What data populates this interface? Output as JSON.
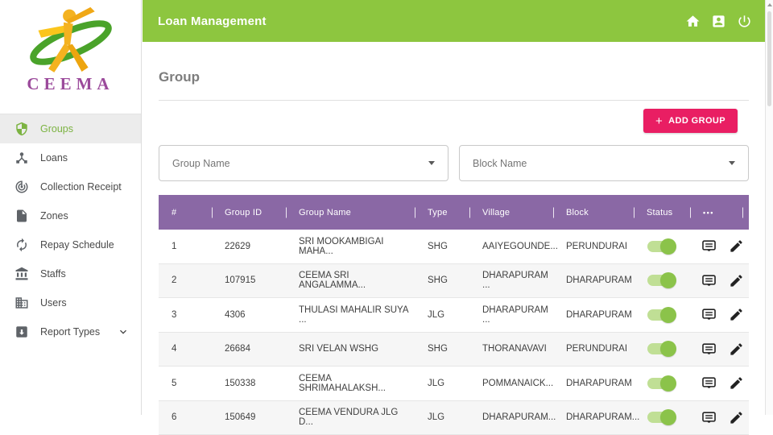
{
  "colors": {
    "topbar_green": "#8dc63f",
    "active_green": "#7cb342",
    "toggle_green": "#8bc34a",
    "table_header_purple": "#8a68a5",
    "add_button_pink": "#e91e63",
    "brand_purple": "#9b4a9b"
  },
  "sidebar": {
    "brand": "CEEMA",
    "items": [
      {
        "id": "groups",
        "label": "Groups",
        "icon": "shield",
        "active": true,
        "expandable": false
      },
      {
        "id": "loans",
        "label": "Loans",
        "icon": "device-hub",
        "active": false,
        "expandable": false
      },
      {
        "id": "collection-receipt",
        "label": "Collection Receipt",
        "icon": "track-changes",
        "active": false,
        "expandable": false
      },
      {
        "id": "zones",
        "label": "Zones",
        "icon": "file",
        "active": false,
        "expandable": false
      },
      {
        "id": "repay-schedule",
        "label": "Repay Schedule",
        "icon": "autorenew",
        "active": false,
        "expandable": false
      },
      {
        "id": "staffs",
        "label": "Staffs",
        "icon": "bank",
        "active": false,
        "expandable": false
      },
      {
        "id": "users",
        "label": "Users",
        "icon": "building",
        "active": false,
        "expandable": false
      },
      {
        "id": "report-types",
        "label": "Report Types",
        "icon": "report-box",
        "active": false,
        "expandable": true
      }
    ]
  },
  "topbar": {
    "title": "Loan Management",
    "icons": [
      "home",
      "account",
      "power"
    ]
  },
  "main": {
    "page_title": "Group",
    "add_button": {
      "plus": "+",
      "label": "ADD GROUP"
    },
    "filters": [
      {
        "id": "group-name",
        "placeholder": "Group Name"
      },
      {
        "id": "block-name",
        "placeholder": "Block Name"
      }
    ],
    "table": {
      "columns": [
        "#",
        "Group ID",
        "Group Name",
        "Type",
        "Village",
        "Block",
        "Status",
        "•••"
      ],
      "rows": [
        {
          "cells": [
            "1",
            "22629",
            "SRI MOOKAMBIGAI MAHA...",
            "SHG",
            "AAIYEGOUNDE...",
            "PERUNDURAI"
          ],
          "status_on": true
        },
        {
          "cells": [
            "2",
            "107915",
            "CEEMA SRI ANGALAMMA...",
            "SHG",
            "DHARAPURAM ...",
            "DHARAPURAM"
          ],
          "status_on": true
        },
        {
          "cells": [
            "3",
            "4306",
            "THULASI MAHALIR SUYA ...",
            "JLG",
            "DHARAPURAM ...",
            "DHARAPURAM"
          ],
          "status_on": true
        },
        {
          "cells": [
            "4",
            "26684",
            "SRI VELAN WSHG",
            "SHG",
            "THORANAVAVI",
            "PERUNDURAI"
          ],
          "status_on": true
        },
        {
          "cells": [
            "5",
            "150338",
            "CEEMA SHRIMAHALAKSH...",
            "JLG",
            "POMMANAICK...",
            "DHARAPURAM"
          ],
          "status_on": true
        },
        {
          "cells": [
            "6",
            "150649",
            "CEEMA VENDURA JLG D...",
            "JLG",
            "DHARAPURAM...",
            "DHARAPURAM..."
          ],
          "status_on": true
        }
      ]
    }
  }
}
